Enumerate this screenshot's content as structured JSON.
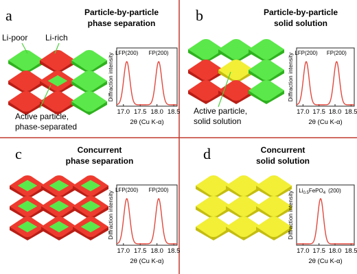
{
  "colors": {
    "red": "#ee3b2f",
    "red_dark": "#b81e16",
    "green": "#5be84a",
    "green_dark": "#2fb21f",
    "yellow": "#f2ef36",
    "yellow_dark": "#c4bd12",
    "divider": "#c0392b",
    "curve": "#e0473c"
  },
  "panels": {
    "a": {
      "letter": "a",
      "title_line1": "Particle-by-particle",
      "title_line2": "phase separation",
      "label_li_poor": "Li-poor",
      "label_li_rich": "Li-rich",
      "label_active1": "Active particle,",
      "label_active2": "phase-separated",
      "particles": [
        [
          "green",
          "red",
          "green"
        ],
        [
          "red",
          "red-core-green",
          "green"
        ],
        [
          "red",
          "red",
          "green"
        ]
      ],
      "peak_labels": [
        "LFP(200)",
        "FP(200)"
      ]
    },
    "b": {
      "letter": "b",
      "title_line1": "Particle-by-particle",
      "title_line2": "solid solution",
      "label_active1": "Active particle,",
      "label_active2": "solid solution",
      "particles": [
        [
          "green",
          "green",
          "green"
        ],
        [
          "red",
          "yellow",
          "green"
        ],
        [
          "red",
          "red",
          "green"
        ]
      ],
      "peak_labels": [
        "LFP(200)",
        "FP(200)"
      ]
    },
    "c": {
      "letter": "c",
      "title_line1": "Concurrent",
      "title_line2": "phase separation",
      "particles": [
        [
          "red-core-green",
          "red-core-green",
          "red-core-green"
        ],
        [
          "red-core-green",
          "red-core-green",
          "red-core-green"
        ],
        [
          "red-core-green",
          "red-core-green",
          "red-core-green"
        ]
      ],
      "peak_labels": [
        "LFP(200)",
        "FP(200)"
      ]
    },
    "d": {
      "letter": "d",
      "title_line1": "Concurrent",
      "title_line2": "solid solution",
      "particles": [
        [
          "yellow",
          "yellow",
          "yellow"
        ],
        [
          "yellow",
          "yellow",
          "yellow"
        ],
        [
          "yellow",
          "yellow",
          "yellow"
        ]
      ],
      "peak_label_main": "Li",
      "peak_label_sub": "0.5",
      "peak_label_rest": "FePO",
      "peak_label_sub2": "4",
      "peak_label_hkl": "(200)"
    }
  },
  "chart_data": [
    {
      "type": "line",
      "panel": "a",
      "x_ticks": [
        "17.0",
        "17.5",
        "18.0",
        "18.5"
      ],
      "xlabel": "2θ (Cu K-α)",
      "ylabel": "Diffraction intensity",
      "xlim": [
        16.8,
        18.6
      ],
      "peaks": [
        17.1,
        18.05
      ],
      "peak_width": 0.09,
      "amplitude": [
        1,
        1
      ]
    },
    {
      "type": "line",
      "panel": "b",
      "x_ticks": [
        "17.0",
        "17.5",
        "18.0",
        "18.5"
      ],
      "xlabel": "2θ (Cu K-α)",
      "ylabel": "Diffraction intensity",
      "xlim": [
        16.8,
        18.6
      ],
      "peaks": [
        17.1,
        18.05
      ],
      "peak_width": 0.09,
      "amplitude": [
        1,
        1
      ]
    },
    {
      "type": "line",
      "panel": "c",
      "x_ticks": [
        "17.0",
        "17.5",
        "18.0",
        "18.5"
      ],
      "xlabel": "2θ (Cu K-α)",
      "ylabel": "Diffraction intensity",
      "xlim": [
        16.8,
        18.6
      ],
      "peaks": [
        17.1,
        18.05
      ],
      "peak_width": 0.09,
      "amplitude": [
        1,
        1
      ]
    },
    {
      "type": "line",
      "panel": "d",
      "x_ticks": [
        "17.0",
        "17.5",
        "18.0",
        "18.5"
      ],
      "xlabel": "2θ (Cu K-α)",
      "ylabel": "Diffraction intensity",
      "xlim": [
        16.8,
        18.6
      ],
      "peaks": [
        17.55
      ],
      "peak_width": 0.09,
      "amplitude": [
        1
      ]
    }
  ]
}
